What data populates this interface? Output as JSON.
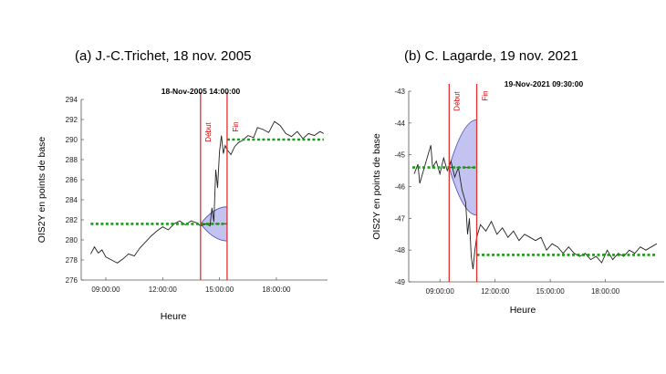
{
  "chart_data": [
    {
      "type": "line",
      "title": "(a) J.-C.Trichet, 18 nov. 2005",
      "timestamp": "18-Nov-2005 14:00:00",
      "xlabel": "Heure",
      "ylabel": "OIS2Y en points de base",
      "ylim": [
        276,
        294
      ],
      "yticks": [
        "276",
        "278",
        "280",
        "282",
        "284",
        "286",
        "288",
        "290",
        "292",
        "294"
      ],
      "xlim": [
        7.7,
        20.7
      ],
      "xticks": [
        {
          "v": 9,
          "label": "09:00:00"
        },
        {
          "v": 12,
          "label": "12:00:00"
        },
        {
          "v": 15,
          "label": "15:00:00"
        },
        {
          "v": 18,
          "label": "18:00:00"
        }
      ],
      "event_labels": {
        "start": "Début",
        "end": "Fin"
      },
      "event_start": 14.0,
      "event_end": 15.4,
      "pre_level": 281.6,
      "pre_level_range": [
        8.2,
        15.4
      ],
      "post_level": 290.0,
      "post_level_range": [
        15.4,
        20.5
      ],
      "cone": {
        "x0": 14.0,
        "x1": 15.4,
        "mid": 281.6,
        "lo": 279.9,
        "hi": 283.3
      },
      "series": [
        {
          "values": [
            [
              8.2,
              278.6
            ],
            [
              8.4,
              279.3
            ],
            [
              8.6,
              278.7
            ],
            [
              8.8,
              279.0
            ],
            [
              9.0,
              278.3
            ],
            [
              9.3,
              278.0
            ],
            [
              9.6,
              277.7
            ],
            [
              9.9,
              278.1
            ],
            [
              10.2,
              278.6
            ],
            [
              10.5,
              278.4
            ],
            [
              10.8,
              279.2
            ],
            [
              11.1,
              279.8
            ],
            [
              11.4,
              280.4
            ],
            [
              11.7,
              280.9
            ],
            [
              12.0,
              281.3
            ],
            [
              12.3,
              281.0
            ],
            [
              12.6,
              281.6
            ],
            [
              12.9,
              281.9
            ],
            [
              13.2,
              281.5
            ],
            [
              13.5,
              281.9
            ],
            [
              13.8,
              281.7
            ],
            [
              14.0,
              281.4
            ],
            [
              14.3,
              281.6
            ],
            [
              14.5,
              281.4
            ],
            [
              14.6,
              283.2
            ],
            [
              14.7,
              281.8
            ],
            [
              14.8,
              287.0
            ],
            [
              14.9,
              285.2
            ],
            [
              15.0,
              288.8
            ],
            [
              15.1,
              290.4
            ],
            [
              15.2,
              288.6
            ],
            [
              15.3,
              289.4
            ],
            [
              15.4,
              289.0
            ],
            [
              15.6,
              288.5
            ],
            [
              15.8,
              289.3
            ],
            [
              16.0,
              289.7
            ],
            [
              16.2,
              289.9
            ],
            [
              16.5,
              290.4
            ],
            [
              16.8,
              290.2
            ],
            [
              17.0,
              291.2
            ],
            [
              17.3,
              291.0
            ],
            [
              17.6,
              290.7
            ],
            [
              17.9,
              291.8
            ],
            [
              18.2,
              291.4
            ],
            [
              18.5,
              290.6
            ],
            [
              18.8,
              290.3
            ],
            [
              19.1,
              290.8
            ],
            [
              19.4,
              290.1
            ],
            [
              19.7,
              290.6
            ],
            [
              20.0,
              290.4
            ],
            [
              20.3,
              290.8
            ],
            [
              20.5,
              290.6
            ]
          ]
        }
      ]
    },
    {
      "type": "line",
      "title": "(b) C. Lagarde, 19 nov. 2021",
      "timestamp": "19-Nov-2021 09:30:00",
      "xlabel": "Heure",
      "ylabel": "OIS2Y en points de base",
      "ylim": [
        -49,
        -43
      ],
      "yticks": [
        "-49",
        "-48",
        "-47",
        "-46",
        "-45",
        "-44",
        "-43"
      ],
      "xlim": [
        7.3,
        21.2
      ],
      "xticks": [
        {
          "v": 9,
          "label": "09:00:00"
        },
        {
          "v": 12,
          "label": "12:00:00"
        },
        {
          "v": 15,
          "label": "15:00:00"
        },
        {
          "v": 18,
          "label": "18:00:00"
        }
      ],
      "event_labels": {
        "start": "Début",
        "end": "Fin"
      },
      "event_start": 9.5,
      "event_end": 11.0,
      "pre_level": -45.4,
      "pre_level_range": [
        7.5,
        11.0
      ],
      "post_level": -48.15,
      "post_level_range": [
        11.0,
        20.8
      ],
      "cone": {
        "x0": 9.5,
        "x1": 11.0,
        "mid": -45.4,
        "lo": -46.9,
        "hi": -43.9
      },
      "series": [
        {
          "values": [
            [
              7.6,
              -45.6
            ],
            [
              7.8,
              -45.3
            ],
            [
              7.9,
              -45.9
            ],
            [
              8.1,
              -45.5
            ],
            [
              8.3,
              -45.1
            ],
            [
              8.5,
              -44.7
            ],
            [
              8.6,
              -45.4
            ],
            [
              8.8,
              -45.2
            ],
            [
              9.0,
              -45.6
            ],
            [
              9.2,
              -45.1
            ],
            [
              9.4,
              -45.5
            ],
            [
              9.6,
              -45.2
            ],
            [
              9.8,
              -45.7
            ],
            [
              10.0,
              -45.4
            ],
            [
              10.2,
              -46.1
            ],
            [
              10.4,
              -46.5
            ],
            [
              10.5,
              -47.5
            ],
            [
              10.6,
              -47.0
            ],
            [
              10.7,
              -48.2
            ],
            [
              10.8,
              -48.6
            ],
            [
              10.9,
              -48.0
            ],
            [
              11.0,
              -47.6
            ],
            [
              11.2,
              -47.2
            ],
            [
              11.5,
              -47.4
            ],
            [
              11.8,
              -47.1
            ],
            [
              12.1,
              -47.5
            ],
            [
              12.4,
              -47.3
            ],
            [
              12.7,
              -47.6
            ],
            [
              13.0,
              -47.4
            ],
            [
              13.3,
              -47.7
            ],
            [
              13.6,
              -47.5
            ],
            [
              13.9,
              -47.6
            ],
            [
              14.2,
              -47.7
            ],
            [
              14.5,
              -47.6
            ],
            [
              14.8,
              -48.0
            ],
            [
              15.1,
              -47.8
            ],
            [
              15.4,
              -47.9
            ],
            [
              15.7,
              -48.1
            ],
            [
              16.0,
              -47.9
            ],
            [
              16.3,
              -48.1
            ],
            [
              16.6,
              -48.2
            ],
            [
              16.9,
              -48.1
            ],
            [
              17.2,
              -48.3
            ],
            [
              17.5,
              -48.2
            ],
            [
              17.8,
              -48.4
            ],
            [
              18.1,
              -48.0
            ],
            [
              18.4,
              -48.3
            ],
            [
              18.7,
              -48.1
            ],
            [
              19.0,
              -48.2
            ],
            [
              19.3,
              -48.0
            ],
            [
              19.6,
              -48.1
            ],
            [
              19.9,
              -47.9
            ],
            [
              20.2,
              -48.0
            ],
            [
              20.5,
              -47.9
            ],
            [
              20.8,
              -47.8
            ]
          ]
        }
      ]
    }
  ]
}
